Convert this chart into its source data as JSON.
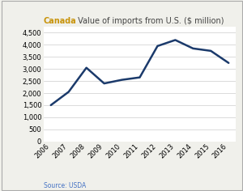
{
  "years": [
    2006,
    2007,
    2008,
    2009,
    2010,
    2011,
    2012,
    2013,
    2014,
    2015,
    2016
  ],
  "values": [
    1500,
    2050,
    3050,
    2400,
    2550,
    2650,
    3950,
    4200,
    3850,
    3750,
    3250
  ],
  "line_color": "#1b3a6b",
  "line_width": 1.8,
  "title_country": "Canada",
  "title_country_color": "#c8930a",
  "title_rest": " Value of imports from U.S. ($ million)",
  "title_rest_color": "#444444",
  "title_fontsize": 7.0,
  "source_text": "Source: USDA",
  "source_color": "#4472c4",
  "ylim": [
    0,
    4750
  ],
  "yticks": [
    0,
    500,
    1000,
    1500,
    2000,
    2500,
    3000,
    3500,
    4000,
    4500
  ],
  "background_color": "#f0f0eb",
  "plot_bg_color": "#ffffff",
  "grid_color": "#cccccc",
  "tick_fontsize": 6.0,
  "border_color": "#aaaaaa"
}
